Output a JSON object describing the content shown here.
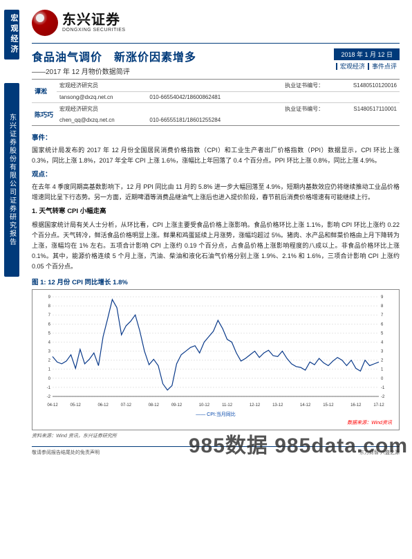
{
  "side": {
    "top": "宏观经济",
    "bottom": "东兴证券股份有限公司证券研究报告"
  },
  "logo": {
    "cn": "东兴证券",
    "en": "DONGXING SECURITIES"
  },
  "title": {
    "main": "食品油气调价　新涨价因素增多",
    "sub": "——2017 年 12 月物价数据简评",
    "date": "2018 年 1 月 12 日",
    "tag1": "宏观经济",
    "tag2": "事件点评"
  },
  "analysts": [
    {
      "name": "谭淞",
      "role": "宏观经济研究员",
      "email": "tansong@dxzq.net.cn",
      "phone": "010-66554042/18600862481",
      "licLabel": "执业证书编号：",
      "lic": "S1480510120016"
    },
    {
      "name": "陈巧巧",
      "role": "宏观经济研究员",
      "email": "chen_qq@dxzq.net.cn",
      "phone": "010-66555181/18601255284",
      "licLabel": "执业证书编号：",
      "lic": "S1480517110001"
    }
  ],
  "sec": {
    "eventLabel": "事件：",
    "event": "国家统计局发布的 2017 年 12 月份全国居民消费价格指数（CPI）和工业生产者出厂价格指数（PPI）数据显示，CPI 环比上涨 0.3%，同比上涨 1.8%，2017 年全年 CPI 上涨 1.6%，涨幅比上年回落了 0.4 个百分点。PPI 环比上涨 0.8%，同比上涨 4.9%。",
    "viewLabel": "观点：",
    "view": "在去年 4 季度同期高基数影响下，12 月 PPI 同比由 11 月的 5.8% 进一步大幅回落至 4.9%，短期内基数效应仍将继续推动工业品价格增速同比呈下行态势。另一方面，近期啤酒等消费品继油气上涨后也进入提价阶段，春节前后消费价格增速有可能继续上行。",
    "h1": "1. 天气转寒 CPI 小幅走高",
    "p1": "根据国家统计局有关人士分析，从环比看，CPI 上涨主要受食品价格上涨影响。食品价格环比上涨 1.1%，影响 CPI 环比上涨约 0.22 个百分点。天气转冷，鲜活食品价格明显上涨。鲜果和鸡蛋延续上月涨势，涨幅均超过 5%。猪肉、水产品和鲜菜价格由上月下降转为上涨，涨幅均在 1% 左右。五项合计影响 CPI 上涨约 0.19 个百分点，占食品价格上涨影响程度的八成以上。非食品价格环比上涨 0.1%。其中，能源价格连续 5 个月上涨，汽油、柴油和液化石油气价格分别上涨 1.9%、2.1% 和 1.6%，三项合计影响 CPI 上涨约 0.05 个百分点。"
  },
  "chart": {
    "title": "图 1: 12 月份 CPI 同比增长 1.8%",
    "legend": "CPI:当月同比",
    "dataSource": "数据来源：Wind资讯",
    "srcNote": "资料来源：Wind 资讯，东兴证券研究所",
    "line_color": "#0a3a8a",
    "grid_color": "#cccccc",
    "axis_color": "#444444",
    "bg": "#ffffff",
    "ylim": [
      -2,
      9
    ],
    "yticks": [
      -2,
      -1,
      0,
      1,
      2,
      3,
      4,
      5,
      6,
      7,
      8,
      9
    ],
    "xticks": [
      "04-12",
      "05-12",
      "06-12",
      "07-12",
      "08-12",
      "09-12",
      "10-12",
      "11-12",
      "12-12",
      "13-12",
      "14-12",
      "15-12",
      "16-12",
      "17-12"
    ],
    "values": [
      2.4,
      1.8,
      1.6,
      1.9,
      2.6,
      1.1,
      3.2,
      1.6,
      2.1,
      2.8,
      1.4,
      4.6,
      6.6,
      8.7,
      7.8,
      4.8,
      5.8,
      6.3,
      7.0,
      5.2,
      3.0,
      1.5,
      2.1,
      1.4,
      -0.6,
      -1.3,
      -0.8,
      1.6,
      2.6,
      3.0,
      3.4,
      3.6,
      2.8,
      4.0,
      4.6,
      5.2,
      6.4,
      5.5,
      4.3,
      4.0,
      2.8,
      1.9,
      2.2,
      2.6,
      3.0,
      2.3,
      2.8,
      3.1,
      2.5,
      2.4,
      3.0,
      2.2,
      1.6,
      1.3,
      1.2,
      0.9,
      1.8,
      1.5,
      2.2,
      1.7,
      1.4,
      1.9,
      2.3,
      2.0,
      1.4,
      2.0,
      1.1,
      0.8,
      2.0,
      1.4,
      1.6,
      1.8
    ]
  },
  "footer": {
    "left": "敬请参阅报告结尾处的免责声明",
    "right": "东方财智 兴盛之源"
  },
  "watermark": "985数据 985data.com"
}
